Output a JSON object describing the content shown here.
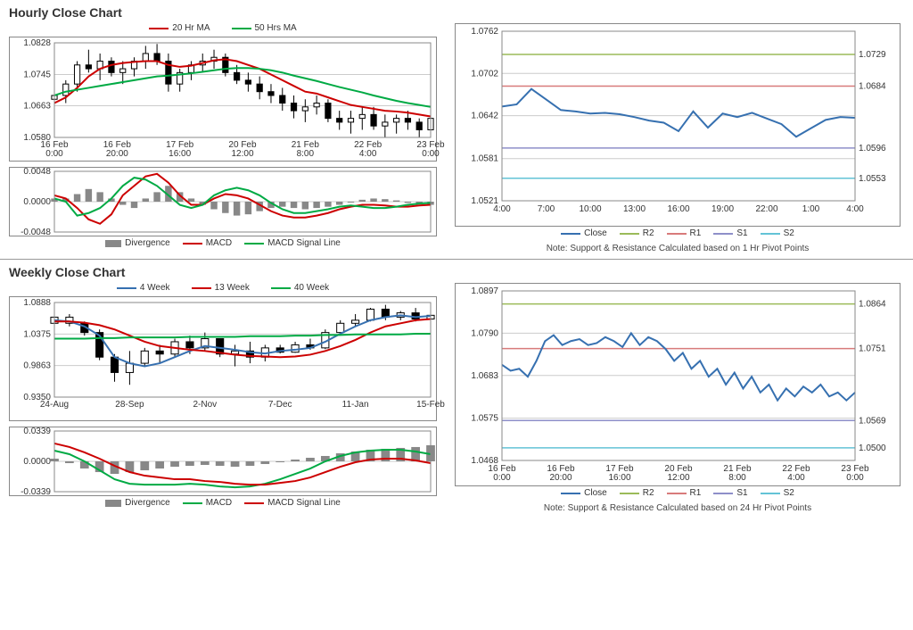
{
  "hourly": {
    "title": "Hourly Close Chart",
    "legend_top": [
      {
        "label": "20 Hr MA",
        "color": "#cc0000"
      },
      {
        "label": "50 Hrs MA",
        "color": "#00aa44"
      }
    ],
    "legend_bottom": [
      {
        "label": "Divergence",
        "color": "#888888",
        "type": "bar"
      },
      {
        "label": "MACD",
        "color": "#cc0000"
      },
      {
        "label": "MACD Signal Line",
        "color": "#00aa44"
      }
    ],
    "price": {
      "ylim": [
        1.058,
        1.0828
      ],
      "yticks": [
        1.058,
        1.0663,
        1.0745,
        1.0828
      ],
      "xticks": [
        "16 Feb\n0:00",
        "16 Feb\n20:00",
        "17 Feb\n16:00",
        "20 Feb\n12:00",
        "21 Feb\n8:00",
        "22 Feb\n4:00",
        "23 Feb\n0:00"
      ],
      "candle_color": "#000000",
      "candles": [
        [
          1.068,
          1.071,
          1.065,
          1.069
        ],
        [
          1.069,
          1.073,
          1.067,
          1.072
        ],
        [
          1.072,
          1.078,
          1.07,
          1.077
        ],
        [
          1.077,
          1.081,
          1.075,
          1.076
        ],
        [
          1.076,
          1.08,
          1.073,
          1.078
        ],
        [
          1.078,
          1.079,
          1.074,
          1.075
        ],
        [
          1.075,
          1.078,
          1.072,
          1.076
        ],
        [
          1.076,
          1.079,
          1.074,
          1.078
        ],
        [
          1.078,
          1.082,
          1.076,
          1.08
        ],
        [
          1.08,
          1.0825,
          1.077,
          1.078
        ],
        [
          1.078,
          1.08,
          1.07,
          1.072
        ],
        [
          1.072,
          1.076,
          1.07,
          1.075
        ],
        [
          1.075,
          1.078,
          1.073,
          1.077
        ],
        [
          1.077,
          1.08,
          1.075,
          1.078
        ],
        [
          1.078,
          1.081,
          1.076,
          1.079
        ],
        [
          1.079,
          1.08,
          1.074,
          1.075
        ],
        [
          1.075,
          1.077,
          1.072,
          1.073
        ],
        [
          1.073,
          1.075,
          1.07,
          1.072
        ],
        [
          1.072,
          1.074,
          1.068,
          1.07
        ],
        [
          1.07,
          1.072,
          1.067,
          1.069
        ],
        [
          1.069,
          1.071,
          1.065,
          1.067
        ],
        [
          1.067,
          1.069,
          1.063,
          1.065
        ],
        [
          1.065,
          1.068,
          1.062,
          1.066
        ],
        [
          1.066,
          1.069,
          1.064,
          1.067
        ],
        [
          1.067,
          1.068,
          1.062,
          1.063
        ],
        [
          1.063,
          1.065,
          1.06,
          1.062
        ],
        [
          1.062,
          1.065,
          1.059,
          1.063
        ],
        [
          1.063,
          1.066,
          1.06,
          1.064
        ],
        [
          1.064,
          1.066,
          1.06,
          1.061
        ],
        [
          1.061,
          1.064,
          1.058,
          1.062
        ],
        [
          1.062,
          1.064,
          1.059,
          1.063
        ],
        [
          1.063,
          1.065,
          1.06,
          1.062
        ],
        [
          1.062,
          1.063,
          1.058,
          1.06
        ],
        [
          1.06,
          1.064,
          1.058,
          1.063
        ]
      ],
      "ma20_color": "#cc0000",
      "ma20": [
        1.067,
        1.0685,
        1.071,
        1.074,
        1.076,
        1.077,
        1.0775,
        1.0778,
        1.078,
        1.078,
        1.077,
        1.0765,
        1.0768,
        1.0775,
        1.0782,
        1.0785,
        1.078,
        1.077,
        1.076,
        1.0745,
        1.073,
        1.0715,
        1.07,
        1.0695,
        1.0685,
        1.0675,
        1.0665,
        1.066,
        1.0655,
        1.065,
        1.0648,
        1.0645,
        1.064,
        1.0635
      ],
      "ma50_color": "#00aa44",
      "ma50": [
        1.069,
        1.07,
        1.0705,
        1.071,
        1.0715,
        1.072,
        1.0725,
        1.073,
        1.0735,
        1.074,
        1.0742,
        1.0745,
        1.0748,
        1.0752,
        1.0756,
        1.076,
        1.0762,
        1.0762,
        1.076,
        1.0756,
        1.075,
        1.0742,
        1.0735,
        1.0728,
        1.072,
        1.0712,
        1.0705,
        1.0698,
        1.069,
        1.0683,
        1.0676,
        1.067,
        1.0665,
        1.066
      ]
    },
    "macd": {
      "ylim": [
        -0.0048,
        0.0048
      ],
      "yticks": [
        -0.0048,
        0.0,
        0.0048
      ],
      "bar_color": "#888888",
      "bars": [
        0.0005,
        0.0005,
        0.0012,
        0.002,
        0.0015,
        0.0005,
        -0.0005,
        -0.001,
        0.0005,
        0.0015,
        0.0025,
        0.0015,
        0.0005,
        -0.0005,
        -0.0012,
        -0.0018,
        -0.0022,
        -0.002,
        -0.0015,
        -0.001,
        -0.0008,
        -0.001,
        -0.0012,
        -0.001,
        -0.0008,
        -0.0005,
        0.0,
        0.0003,
        0.0005,
        0.0004,
        0.0002,
        -0.0002,
        -0.0004,
        -0.0005
      ],
      "macd_color": "#cc0000",
      "macd": [
        0.001,
        0.0005,
        -0.001,
        -0.0028,
        -0.0035,
        -0.002,
        0.001,
        0.0025,
        0.004,
        0.0044,
        0.003,
        0.001,
        -0.0005,
        -0.0005,
        0.0005,
        0.0012,
        0.001,
        0.0005,
        -0.0005,
        -0.0015,
        -0.0022,
        -0.0025,
        -0.0025,
        -0.0022,
        -0.0018,
        -0.0012,
        -0.0008,
        -0.0005,
        -0.0005,
        -0.0006,
        -0.0008,
        -0.0008,
        -0.0006,
        -0.0005
      ],
      "signal_color": "#00aa44",
      "signal": [
        0.0005,
        0.0,
        -0.0022,
        -0.0018,
        -0.001,
        0.0005,
        0.0025,
        0.0038,
        0.0035,
        0.0025,
        0.001,
        -0.0005,
        -0.001,
        -0.0005,
        0.001,
        0.0018,
        0.0022,
        0.0018,
        0.001,
        -0.0002,
        -0.0012,
        -0.0018,
        -0.0018,
        -0.0015,
        -0.0012,
        -0.0008,
        -0.0006,
        -0.0008,
        -0.001,
        -0.001,
        -0.0008,
        -0.0005,
        -0.0003,
        -0.0002
      ]
    },
    "sr": {
      "ylim": [
        1.0521,
        1.0762
      ],
      "yticks": [
        1.0521,
        1.0581,
        1.0642,
        1.0702,
        1.0762
      ],
      "xticks": [
        "4:00",
        "7:00",
        "10:00",
        "13:00",
        "16:00",
        "19:00",
        "22:00",
        "1:00",
        "4:00"
      ],
      "close_color": "#3670b0",
      "close": [
        1.0655,
        1.0658,
        1.068,
        1.0665,
        1.065,
        1.0648,
        1.0645,
        1.0646,
        1.0644,
        1.064,
        1.0635,
        1.0632,
        1.062,
        1.0648,
        1.0625,
        1.0645,
        1.064,
        1.0646,
        1.0638,
        1.063,
        1.0612,
        1.0624,
        1.0636,
        1.064,
        1.0639
      ],
      "levels": [
        {
          "name": "R2",
          "value": 1.0729,
          "color": "#9bbb59"
        },
        {
          "name": "R1",
          "value": 1.0684,
          "color": "#d87b7b"
        },
        {
          "name": "S1",
          "value": 1.0596,
          "color": "#8e8fc9"
        },
        {
          "name": "S2",
          "value": 1.0553,
          "color": "#63c3d6"
        }
      ],
      "note": "Note: Support & Resistance Calculated based on 1 Hr Pivot Points",
      "legend": [
        {
          "label": "Close",
          "color": "#3670b0"
        },
        {
          "label": "R2",
          "color": "#9bbb59"
        },
        {
          "label": "R1",
          "color": "#d87b7b"
        },
        {
          "label": "S1",
          "color": "#8e8fc9"
        },
        {
          "label": "S2",
          "color": "#63c3d6"
        }
      ]
    }
  },
  "weekly": {
    "title": "Weekly Close Chart",
    "legend_top": [
      {
        "label": "4 Week",
        "color": "#3670b0"
      },
      {
        "label": "13 Week",
        "color": "#cc0000"
      },
      {
        "label": "40 Week",
        "color": "#00aa44"
      }
    ],
    "legend_bottom": [
      {
        "label": "Divergence",
        "color": "#888888",
        "type": "bar"
      },
      {
        "label": "MACD",
        "color": "#00aa44"
      },
      {
        "label": "MACD Signal Line",
        "color": "#cc0000"
      }
    ],
    "price": {
      "ylim": [
        0.935,
        1.0888
      ],
      "yticks": [
        0.935,
        0.9863,
        1.0375,
        1.0888
      ],
      "xticks": [
        "24-Aug",
        "28-Sep",
        "2-Nov",
        "7-Dec",
        "11-Jan",
        "15-Feb"
      ],
      "candle_color": "#000000",
      "candles": [
        [
          1.055,
          1.07,
          1.045,
          1.065,
          false
        ],
        [
          1.065,
          1.07,
          1.05,
          1.055,
          false
        ],
        [
          1.055,
          1.058,
          1.035,
          1.04,
          true
        ],
        [
          1.04,
          1.045,
          0.995,
          1.0,
          true
        ],
        [
          1.0,
          1.005,
          0.96,
          0.975,
          true
        ],
        [
          0.975,
          1.01,
          0.955,
          0.99,
          false
        ],
        [
          0.99,
          1.015,
          0.985,
          1.01,
          false
        ],
        [
          1.01,
          1.02,
          0.99,
          1.005,
          true
        ],
        [
          1.005,
          1.03,
          1.0,
          1.025,
          false
        ],
        [
          1.025,
          1.035,
          1.005,
          1.015,
          true
        ],
        [
          1.015,
          1.04,
          1.01,
          1.03,
          false
        ],
        [
          1.03,
          1.028,
          1.0,
          1.005,
          true
        ],
        [
          1.005,
          1.02,
          0.985,
          1.01,
          false
        ],
        [
          1.01,
          1.025,
          0.99,
          1.0,
          true
        ],
        [
          1.0,
          1.02,
          0.993,
          1.015,
          false
        ],
        [
          1.015,
          1.02,
          1.006,
          1.008,
          true
        ],
        [
          1.008,
          1.025,
          1.007,
          1.02,
          false
        ],
        [
          1.02,
          1.03,
          1.012,
          1.015,
          true
        ],
        [
          1.015,
          1.045,
          1.013,
          1.04,
          false
        ],
        [
          1.04,
          1.06,
          1.035,
          1.055,
          false
        ],
        [
          1.055,
          1.07,
          1.05,
          1.06,
          false
        ],
        [
          1.06,
          1.08,
          1.058,
          1.078,
          false
        ],
        [
          1.078,
          1.085,
          1.06,
          1.065,
          true
        ],
        [
          1.065,
          1.075,
          1.06,
          1.072,
          false
        ],
        [
          1.072,
          1.08,
          1.058,
          1.062,
          true
        ],
        [
          1.062,
          1.075,
          1.06,
          1.068,
          false
        ]
      ],
      "w4_color": "#3670b0",
      "w4": [
        1.06,
        1.058,
        1.05,
        1.035,
        1.0,
        0.99,
        0.985,
        0.99,
        1.0,
        1.01,
        1.018,
        1.015,
        1.012,
        1.008,
        1.006,
        1.01,
        1.012,
        1.015,
        1.025,
        1.038,
        1.05,
        1.06,
        1.065,
        1.068,
        1.065,
        1.067
      ],
      "w13_color": "#cc0000",
      "w13": [
        1.058,
        1.058,
        1.056,
        1.052,
        1.045,
        1.035,
        1.025,
        1.018,
        1.015,
        1.012,
        1.01,
        1.007,
        1.004,
        1.002,
        1.001,
        1.0,
        1.001,
        1.004,
        1.01,
        1.018,
        1.028,
        1.04,
        1.05,
        1.055,
        1.06,
        1.062
      ],
      "w40_color": "#00aa44",
      "w40": [
        1.03,
        1.03,
        1.03,
        1.031,
        1.031,
        1.032,
        1.032,
        1.032,
        1.032,
        1.033,
        1.033,
        1.033,
        1.033,
        1.034,
        1.034,
        1.034,
        1.035,
        1.035,
        1.036,
        1.036,
        1.037,
        1.037,
        1.037,
        1.037,
        1.038,
        1.038
      ]
    },
    "macd": {
      "ylim": [
        -0.0339,
        0.0339
      ],
      "yticks": [
        -0.0339,
        0.0,
        0.0339
      ],
      "bar_color": "#888888",
      "bars": [
        0.003,
        -0.002,
        -0.008,
        -0.012,
        -0.014,
        -0.012,
        -0.01,
        -0.008,
        -0.006,
        -0.005,
        -0.004,
        -0.005,
        -0.006,
        -0.005,
        -0.003,
        -0.001,
        0.002,
        0.004,
        0.006,
        0.009,
        0.011,
        0.013,
        0.014,
        0.015,
        0.016,
        0.018
      ],
      "macd_color": "#00aa44",
      "macd": [
        0.012,
        0.008,
        0.0,
        -0.01,
        -0.02,
        -0.025,
        -0.026,
        -0.026,
        -0.026,
        -0.025,
        -0.026,
        -0.028,
        -0.029,
        -0.028,
        -0.025,
        -0.02,
        -0.014,
        -0.008,
        0.0,
        0.006,
        0.01,
        0.012,
        0.013,
        0.013,
        0.011,
        0.008
      ],
      "signal_color": "#cc0000",
      "signal": [
        0.02,
        0.016,
        0.01,
        0.003,
        -0.005,
        -0.012,
        -0.016,
        -0.018,
        -0.02,
        -0.02,
        -0.022,
        -0.023,
        -0.025,
        -0.026,
        -0.026,
        -0.024,
        -0.022,
        -0.018,
        -0.012,
        -0.006,
        -0.001,
        0.002,
        0.003,
        0.003,
        0.001,
        -0.002
      ]
    },
    "sr": {
      "ylim": [
        1.0468,
        1.0897
      ],
      "yticks": [
        1.0468,
        1.0575,
        1.0683,
        1.079,
        1.0897
      ],
      "xticks": [
        "16 Feb\n0:00",
        "16 Feb\n20:00",
        "17 Feb\n16:00",
        "20 Feb\n12:00",
        "21 Feb\n8:00",
        "22 Feb\n4:00",
        "23 Feb\n0:00"
      ],
      "close_color": "#3670b0",
      "close": [
        1.071,
        1.0695,
        1.07,
        1.068,
        1.072,
        1.077,
        1.0785,
        1.076,
        1.077,
        1.0775,
        1.076,
        1.0765,
        1.078,
        1.077,
        1.0755,
        1.079,
        1.076,
        1.078,
        1.077,
        1.075,
        1.072,
        1.074,
        1.07,
        1.072,
        1.068,
        1.07,
        1.066,
        1.069,
        1.065,
        1.068,
        1.064,
        1.066,
        1.062,
        1.065,
        1.063,
        1.0655,
        1.064,
        1.066,
        1.063,
        1.064,
        1.062,
        1.064
      ],
      "levels": [
        {
          "name": "R2",
          "value": 1.0864,
          "color": "#9bbb59"
        },
        {
          "name": "R1",
          "value": 1.0751,
          "color": "#d87b7b"
        },
        {
          "name": "S1",
          "value": 1.0569,
          "color": "#8e8fc9"
        },
        {
          "name": "S2",
          "value": 1.05,
          "color": "#63c3d6"
        }
      ],
      "note": "Note: Support & Resistance Calculated based on 24 Hr Pivot Points",
      "legend": [
        {
          "label": "Close",
          "color": "#3670b0"
        },
        {
          "label": "R2",
          "color": "#9bbb59"
        },
        {
          "label": "R1",
          "color": "#d87b7b"
        },
        {
          "label": "S1",
          "color": "#8e8fc9"
        },
        {
          "label": "S2",
          "color": "#63c3d6"
        }
      ]
    }
  }
}
